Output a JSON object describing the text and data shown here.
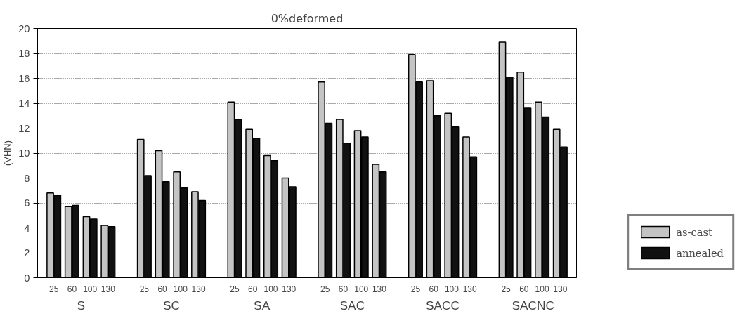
{
  "chart_data": {
    "type": "bar",
    "title": "0%deformed",
    "ylabel": "(VHN)",
    "categories": [
      "25",
      "60",
      "100",
      "130",
      "25",
      "60",
      "100",
      "130",
      "25",
      "60",
      "100",
      "130",
      "25",
      "60",
      "100",
      "130",
      "25",
      "60",
      "100",
      "130",
      "25",
      "60",
      "100",
      "130"
    ],
    "annotations": [
      "S",
      "SC",
      "SA",
      "SAC",
      "SACC",
      "SACNC"
    ],
    "series": [
      {
        "name": "as-cast",
        "color": "#c4c4c4",
        "values": [
          6.8,
          5.7,
          4.9,
          4.2,
          11.1,
          10.2,
          8.5,
          6.9,
          14.1,
          11.9,
          9.8,
          8.0,
          15.7,
          12.7,
          11.8,
          9.1,
          17.9,
          15.8,
          13.2,
          11.3,
          18.9,
          16.5,
          14.1,
          11.9
        ]
      },
      {
        "name": "annealed",
        "color": "#111111",
        "values": [
          6.6,
          5.8,
          4.7,
          4.1,
          8.2,
          7.7,
          7.2,
          6.2,
          12.7,
          11.2,
          9.4,
          7.3,
          12.4,
          10.8,
          11.3,
          8.5,
          15.7,
          13.0,
          12.1,
          9.7,
          16.1,
          13.6,
          12.9,
          10.5
        ]
      }
    ],
    "ylim": [
      0,
      20
    ],
    "yticks": [
      0,
      2,
      4,
      6,
      8,
      10,
      12,
      14,
      16,
      18,
      20
    ],
    "grid": "y",
    "legend": "bottom right"
  }
}
